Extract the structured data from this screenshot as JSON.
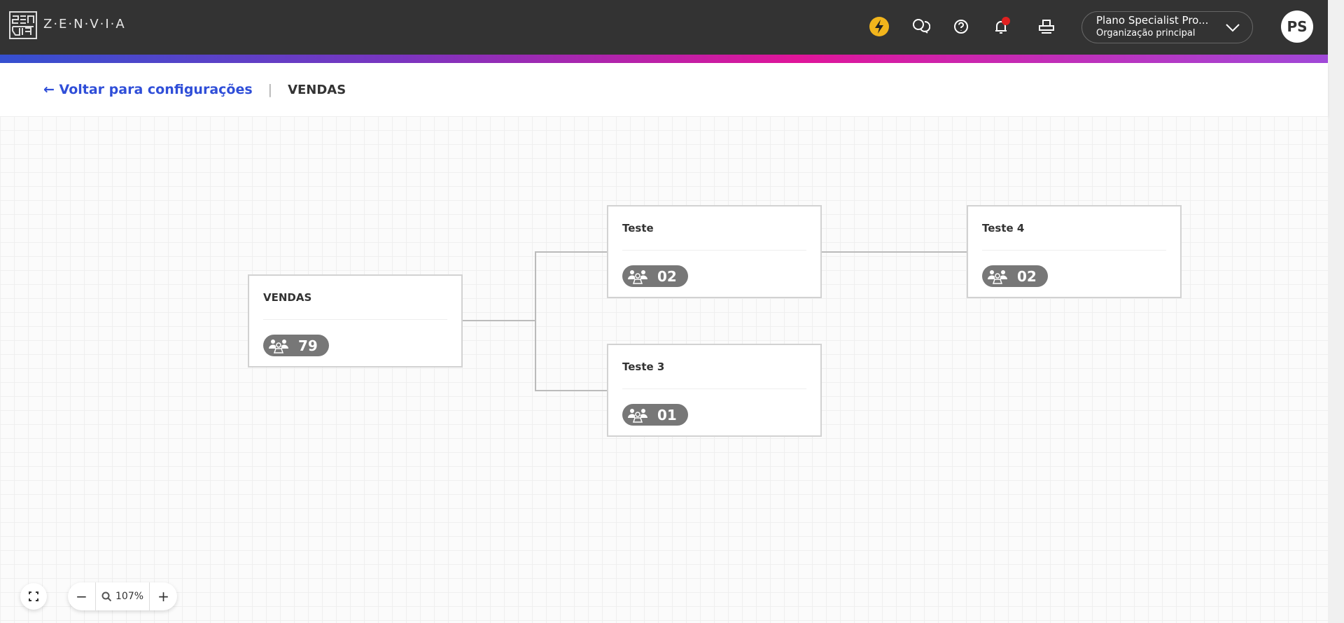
{
  "header": {
    "logo_text": "Z·E·N·V·I·A",
    "org_name": "Plano Specialist Pro...",
    "org_sub": "Organização principal",
    "avatar": "PS",
    "icons": [
      "lightning-icon",
      "chat-help-icon",
      "help-icon",
      "bell-icon",
      "printer-icon"
    ],
    "notification_color": "#e02020",
    "lightning_color": "#f2b51c"
  },
  "breadcrumb": {
    "back_label": "Voltar para configurações",
    "separator": "|",
    "current": "VENDAS"
  },
  "nodes": [
    {
      "title": "VENDAS",
      "count": "79"
    },
    {
      "title": "Teste",
      "count": "02"
    },
    {
      "title": "Teste 3",
      "count": "01"
    },
    {
      "title": "Teste 4",
      "count": "02"
    }
  ],
  "controls": {
    "zoom_level": "107%",
    "minus": "−",
    "plus": "+"
  }
}
